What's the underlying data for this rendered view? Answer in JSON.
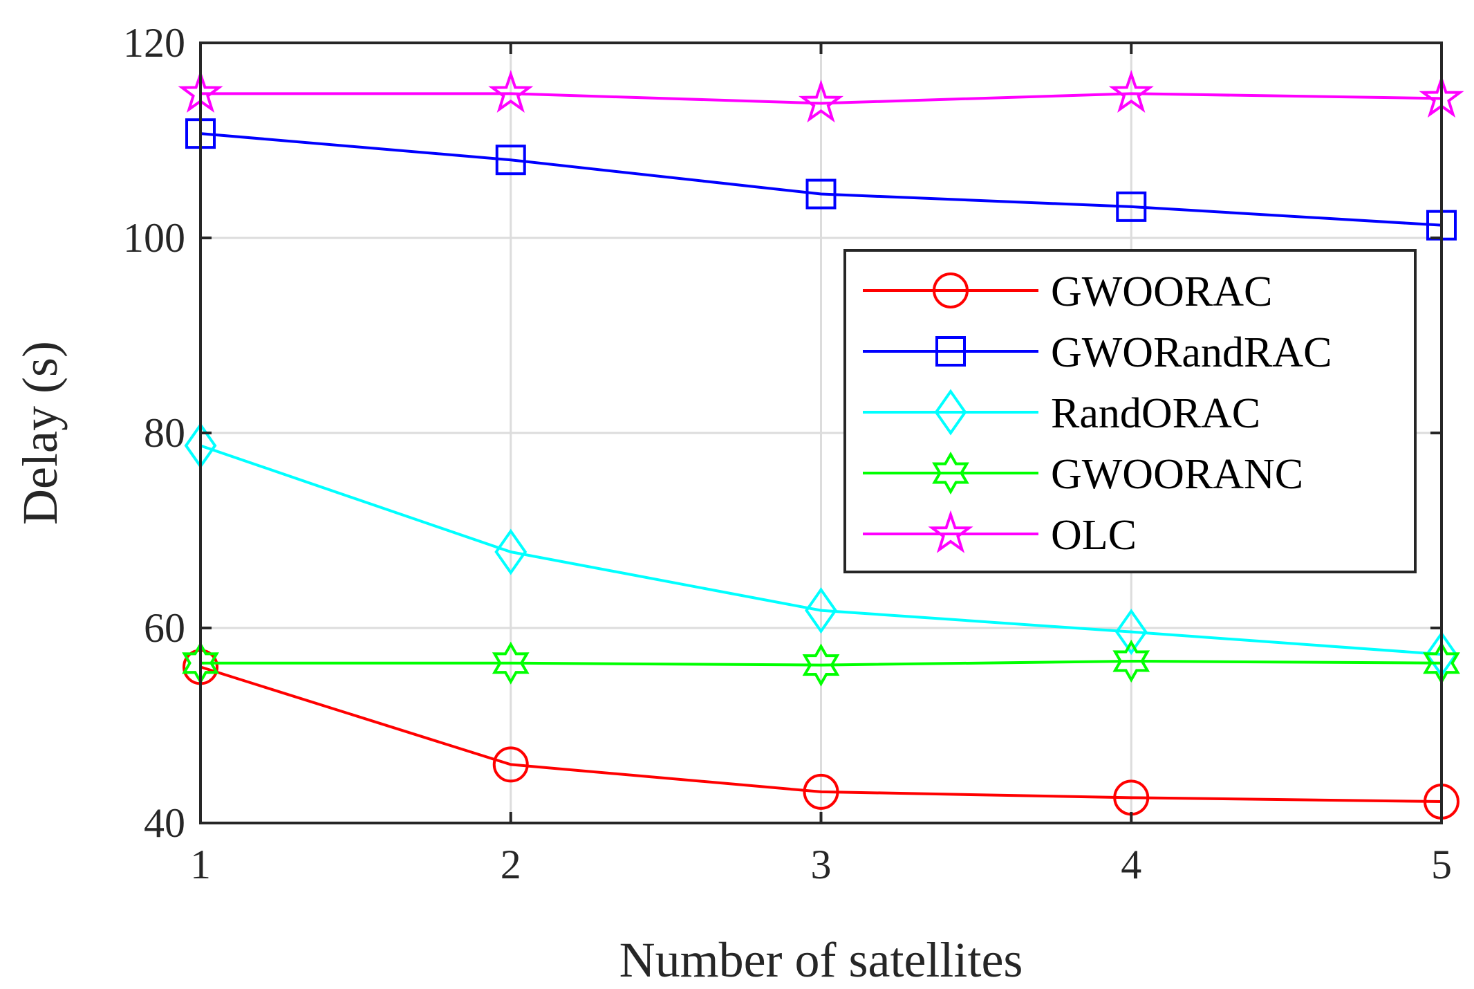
{
  "chart_data": {
    "type": "line",
    "title": "",
    "xlabel": "Number of satellites",
    "ylabel": "Delay (s)",
    "x": [
      1,
      2,
      3,
      4,
      5
    ],
    "xlim": [
      1,
      5
    ],
    "ylim": [
      40,
      120
    ],
    "xticks": [
      "1",
      "2",
      "3",
      "4",
      "5"
    ],
    "yticks": [
      "40",
      "60",
      "80",
      "100",
      "120"
    ],
    "grid": true,
    "legend_position": "right",
    "series": [
      {
        "name": "GWOORAC",
        "color": "#ff0000",
        "marker": "circle",
        "values": [
          56,
          46,
          43.2,
          42.6,
          42.2
        ]
      },
      {
        "name": "GWORandRAC",
        "color": "#0000ff",
        "marker": "square",
        "values": [
          110.7,
          108,
          104.5,
          103.2,
          101.3
        ]
      },
      {
        "name": "RandORAC",
        "color": "#00ffff",
        "marker": "diamond",
        "values": [
          78.7,
          67.8,
          61.8,
          59.6,
          57.3
        ]
      },
      {
        "name": "GWOORANC",
        "color": "#00ff00",
        "marker": "hexagram",
        "values": [
          56.4,
          56.4,
          56.2,
          56.6,
          56.4
        ]
      },
      {
        "name": "OLC",
        "color": "#ff00ff",
        "marker": "pentagram",
        "values": [
          114.8,
          114.8,
          113.8,
          114.8,
          114.3
        ]
      }
    ]
  }
}
